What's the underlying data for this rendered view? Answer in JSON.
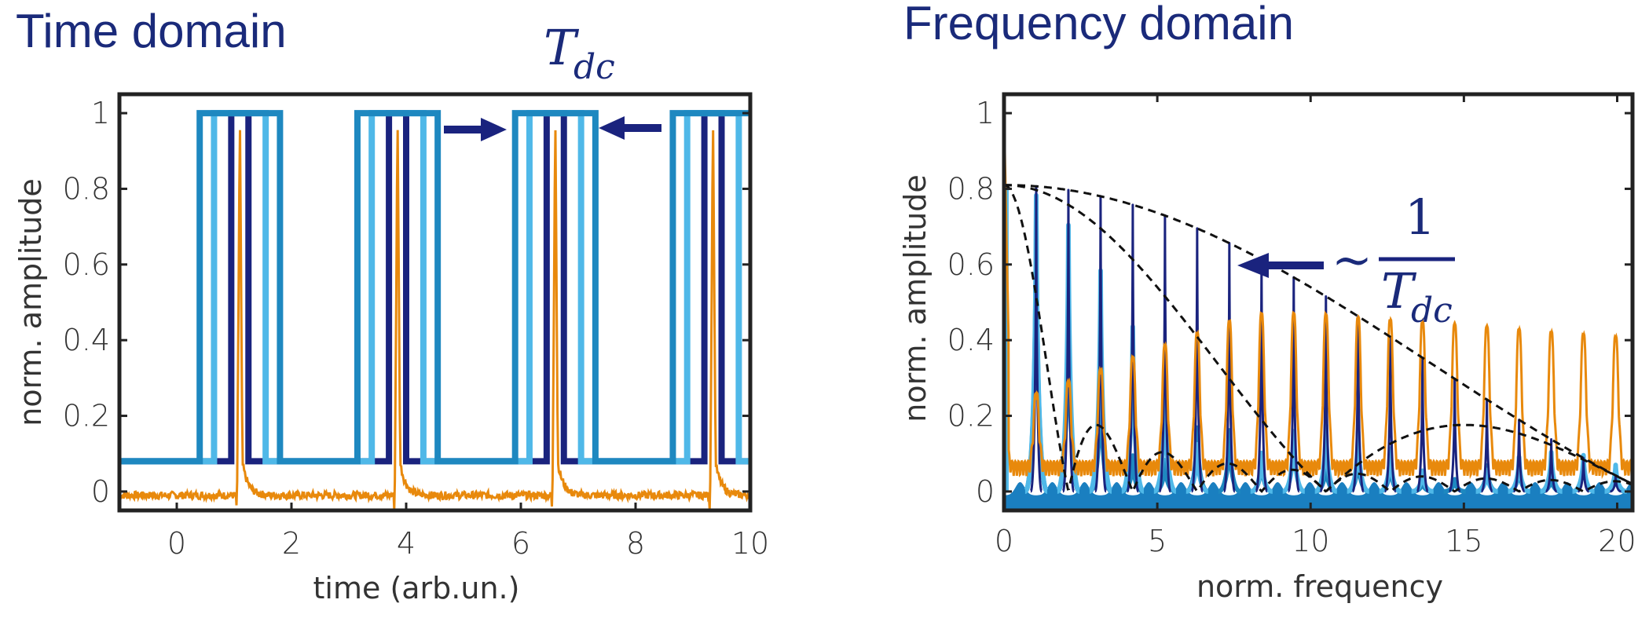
{
  "colors": {
    "title": "#1a2a7a",
    "dark_blue": "#1a237e",
    "mid_blue": "#1e88c0",
    "light_blue": "#4fb8e8",
    "fill_blue": "#1a7fc0",
    "orange": "#e8890c",
    "envelope": "#111111"
  },
  "chart_data": [
    {
      "type": "line",
      "title": "Time domain",
      "xlabel": "time (arb.un.)",
      "ylabel": "norm. amplitude",
      "xlim": [
        -1,
        10
      ],
      "ylim": [
        -0.05,
        1.05
      ],
      "xticks": [
        "0",
        "2",
        "4",
        "6",
        "8",
        "10"
      ],
      "yticks": [
        "0",
        "0.2",
        "0.4",
        "0.6",
        "0.8",
        "1"
      ],
      "annotation": {
        "base": "T",
        "subscript": "dc"
      },
      "period": 2.75,
      "pulse_centers": [
        1.1,
        3.85,
        6.6,
        9.35
      ],
      "series": [
        {
          "style": "dark_blue",
          "kind": "pulse_train",
          "baseline": 0.08,
          "high": 1.0,
          "half_width": 0.15
        },
        {
          "style": "light_blue",
          "kind": "pulse_train",
          "baseline": 0.08,
          "high": 1.0,
          "half_width": 0.45
        },
        {
          "style": "mid_blue",
          "kind": "pulse_train",
          "baseline": 0.08,
          "high": 1.0,
          "half_width": 0.7
        },
        {
          "style": "orange",
          "kind": "spike_train",
          "baseline": -0.01,
          "high": 1.0,
          "noise": 0.01
        }
      ]
    },
    {
      "type": "line",
      "title": "Frequency domain",
      "xlabel": "norm. frequency",
      "ylabel": "norm. amplitude",
      "xlim": [
        0,
        20.5
      ],
      "ylim": [
        -0.05,
        1.05
      ],
      "xticks": [
        "0",
        "5",
        "10",
        "15",
        "20"
      ],
      "yticks": [
        "0",
        "0.2",
        "0.4",
        "0.6",
        "0.8",
        "1"
      ],
      "annotation": {
        "prefix": "~",
        "numerator": "1",
        "base": "T",
        "subscript": "dc"
      },
      "harmonic_spacing": 1.05,
      "series": [
        {
          "style": "dark_blue",
          "kind": "harmonic_lines",
          "envelope_zero": 21.0,
          "peak": 0.81
        },
        {
          "style": "light_blue",
          "kind": "harmonic_lines",
          "envelope_zero": 7.3,
          "peak": 0.81
        },
        {
          "style": "mid_blue",
          "kind": "harmonic_lines",
          "envelope_zero": 4.7,
          "peak": 0.81
        },
        {
          "style": "orange",
          "kind": "dense_spectrum",
          "peak": 0.42
        },
        {
          "style": "envelope",
          "kind": "sinc_envelopes",
          "zeros": [
            21.0,
            10.5,
            2.1
          ],
          "peak": 0.81
        }
      ]
    }
  ]
}
